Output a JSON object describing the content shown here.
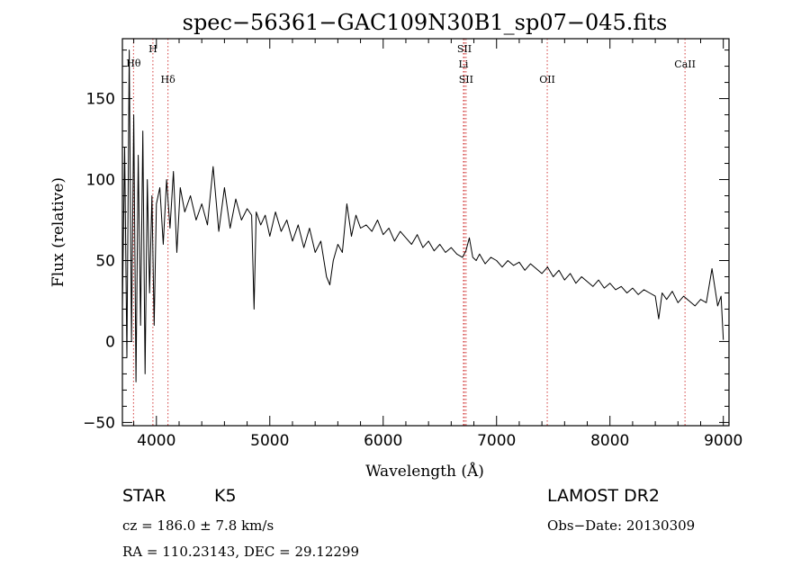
{
  "chart_data": {
    "type": "line",
    "title": "spec−56361−GAC109N30B1_sp07−045.fits",
    "xlabel": "Wavelength (Å)",
    "ylabel": "Flux (relative)",
    "xlim": [
      3700,
      9050
    ],
    "ylim": [
      -52,
      187
    ],
    "xticks": [
      4000,
      5000,
      6000,
      7000,
      8000,
      9000
    ],
    "xtick_labels": [
      "4000",
      "5000",
      "6000",
      "7000",
      "8000",
      "9000"
    ],
    "yticks": [
      -50,
      0,
      50,
      100,
      150
    ],
    "ytick_labels": [
      "−50",
      "0",
      "50",
      "100",
      "150"
    ],
    "grid": false,
    "series": [
      {
        "x": [
          3700,
          3720,
          3740,
          3760,
          3780,
          3800,
          3820,
          3840,
          3860,
          3880,
          3900,
          3920,
          3940,
          3960,
          3980,
          4000,
          4030,
          4060,
          4090,
          4120,
          4150,
          4180,
          4210,
          4250,
          4300,
          4350,
          4400,
          4450,
          4500,
          4550,
          4600,
          4650,
          4700,
          4750,
          4800,
          4840,
          4861,
          4880,
          4920,
          4960,
          5000,
          5050,
          5100,
          5150,
          5200,
          5250,
          5300,
          5350,
          5400,
          5450,
          5500,
          5530,
          5560,
          5600,
          5640,
          5680,
          5720,
          5760,
          5800,
          5850,
          5900,
          5950,
          6000,
          6050,
          6100,
          6150,
          6200,
          6250,
          6300,
          6350,
          6400,
          6450,
          6500,
          6550,
          6600,
          6650,
          6700,
          6730,
          6760,
          6790,
          6820,
          6850,
          6900,
          6950,
          7000,
          7050,
          7100,
          7150,
          7200,
          7250,
          7300,
          7350,
          7400,
          7450,
          7500,
          7550,
          7600,
          7650,
          7700,
          7750,
          7800,
          7850,
          7900,
          7950,
          8000,
          8050,
          8100,
          8150,
          8200,
          8250,
          8300,
          8350,
          8400,
          8430,
          8460,
          8500,
          8550,
          8600,
          8650,
          8700,
          8750,
          8800,
          8850,
          8900,
          8950,
          8980,
          9000
        ],
        "y": [
          20,
          120,
          -10,
          180,
          0,
          140,
          -25,
          115,
          10,
          130,
          -20,
          100,
          30,
          90,
          10,
          85,
          95,
          60,
          100,
          70,
          105,
          55,
          95,
          80,
          90,
          75,
          85,
          72,
          108,
          68,
          95,
          70,
          88,
          75,
          82,
          78,
          20,
          80,
          72,
          78,
          65,
          80,
          68,
          75,
          62,
          72,
          58,
          70,
          55,
          62,
          40,
          35,
          50,
          60,
          55,
          85,
          65,
          78,
          70,
          72,
          68,
          75,
          66,
          70,
          62,
          68,
          64,
          60,
          66,
          58,
          62,
          56,
          60,
          55,
          58,
          54,
          52,
          56,
          64,
          52,
          50,
          54,
          48,
          52,
          50,
          46,
          50,
          47,
          49,
          44,
          48,
          45,
          42,
          46,
          40,
          44,
          38,
          42,
          36,
          40,
          37,
          34,
          38,
          33,
          36,
          32,
          34,
          30,
          33,
          29,
          32,
          30,
          28,
          14,
          30,
          26,
          31,
          24,
          28,
          25,
          22,
          26,
          24,
          45,
          22,
          28,
          1
        ]
      }
    ],
    "lines": [
      {
        "name": "Hθ",
        "x": 3798
      },
      {
        "name": "H",
        "x": 3969
      },
      {
        "name": "Hδ",
        "x": 4102
      },
      {
        "name": "SII",
        "x": 6716
      },
      {
        "name": "Li",
        "x": 6708
      },
      {
        "name": "SII",
        "x": 6731
      },
      {
        "name": "OII",
        "x": 7447
      },
      {
        "name": "CaII",
        "x": 8662
      }
    ]
  },
  "info": {
    "class_label": "STAR",
    "subclass": "K5",
    "cz": "cz = 186.0 ± 7.8 km/s",
    "radec": "RA = 110.23143, DEC =  29.12299",
    "survey": "LAMOST DR2",
    "obs_date": "Obs−Date: 20130309"
  }
}
